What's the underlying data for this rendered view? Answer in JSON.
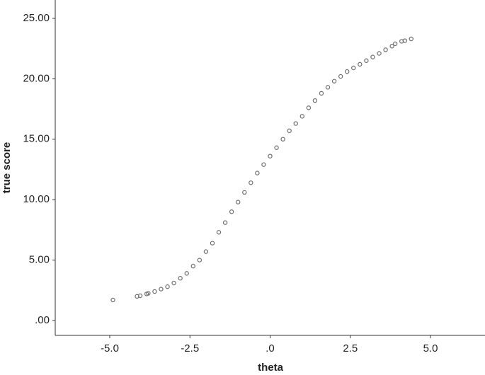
{
  "chart_data": {
    "type": "scatter",
    "x_label": "theta",
    "y_label": "true score",
    "color": "#6e6e6e",
    "xlim": [
      -6.7,
      6.7
    ],
    "ylim": [
      -1.23,
      26.52
    ],
    "xticks": [
      {
        "value": -5,
        "label": "-5.0"
      },
      {
        "value": -2.5,
        "label": "-2.5"
      },
      {
        "value": 0,
        "label": ".0"
      },
      {
        "value": 2.5,
        "label": "2.5"
      },
      {
        "value": 5,
        "label": "5.0"
      }
    ],
    "yticks": [
      {
        "value": 0,
        "label": ".00"
      },
      {
        "value": 5,
        "label": "5.00"
      },
      {
        "value": 10,
        "label": "10.00"
      },
      {
        "value": 15,
        "label": "15.00"
      },
      {
        "value": 20,
        "label": "20.00"
      },
      {
        "value": 25,
        "label": "25.00"
      }
    ],
    "x": [
      -4.9,
      -4.15,
      -4.05,
      -3.85,
      -3.8,
      -3.6,
      -3.4,
      -3.2,
      -3.0,
      -2.8,
      -2.6,
      -2.4,
      -2.2,
      -2.0,
      -1.8,
      -1.6,
      -1.4,
      -1.2,
      -1.0,
      -0.8,
      -0.6,
      -0.4,
      -0.2,
      0,
      0.2,
      0.4,
      0.6,
      0.8,
      1.0,
      1.2,
      1.4,
      1.6,
      1.8,
      2.0,
      2.2,
      2.4,
      2.6,
      2.8,
      3.0,
      3.2,
      3.4,
      3.6,
      3.8,
      3.9,
      4.1,
      4.2,
      4.4
    ],
    "values": [
      1.7,
      2.0,
      2.05,
      2.2,
      2.25,
      2.4,
      2.6,
      2.8,
      3.1,
      3.5,
      3.9,
      4.5,
      5.0,
      5.7,
      6.4,
      7.3,
      8.1,
      9.0,
      9.8,
      10.6,
      11.4,
      12.2,
      12.9,
      13.6,
      14.3,
      15.0,
      15.7,
      16.3,
      16.9,
      17.6,
      18.2,
      18.8,
      19.3,
      19.8,
      20.2,
      20.6,
      20.9,
      21.2,
      21.5,
      21.8,
      22.1,
      22.4,
      22.7,
      22.9,
      23.1,
      23.15,
      23.3
    ]
  }
}
